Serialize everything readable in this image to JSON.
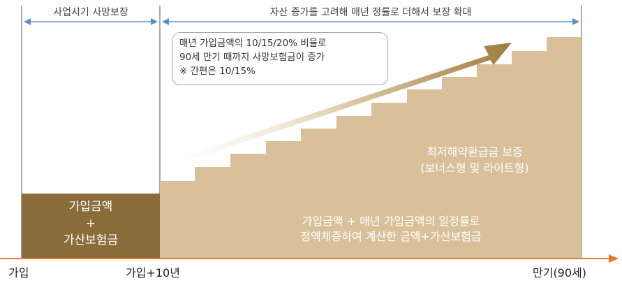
{
  "header": {
    "left_label": "사업시기 사망보장",
    "right_label": "자산 증가를 고려해 매년 정률로 더해서 보장 확대"
  },
  "callout": {
    "line1": "매년 가입금액의 10/15/20% 비율로",
    "line2": "90세 만기 때까지 사망보험금이 증가",
    "line3": "※ 간편은 10/15%"
  },
  "left_box": {
    "line1": "가입금액",
    "line2": "+",
    "line3": "가산보험금"
  },
  "right_area": {
    "title_line1": "최저해약환급금 보증",
    "title_line2": "(보너스형 및 라이트형)",
    "bottom_line1": "가입금액 + 매년 가입금액의 일정률로",
    "bottom_line2": "정액체증하여 계산한 금액+가산보험금"
  },
  "axis": {
    "start": "가입",
    "middle": "가입+10년",
    "end": "만기(90세)"
  },
  "colors": {
    "dark_brown": "#8a6d3b",
    "tan": "#d9c09a",
    "arrow_orange": "#e8762c",
    "bracket_blue": "#5b8fc7",
    "arrow_gold": "#a9894a"
  }
}
